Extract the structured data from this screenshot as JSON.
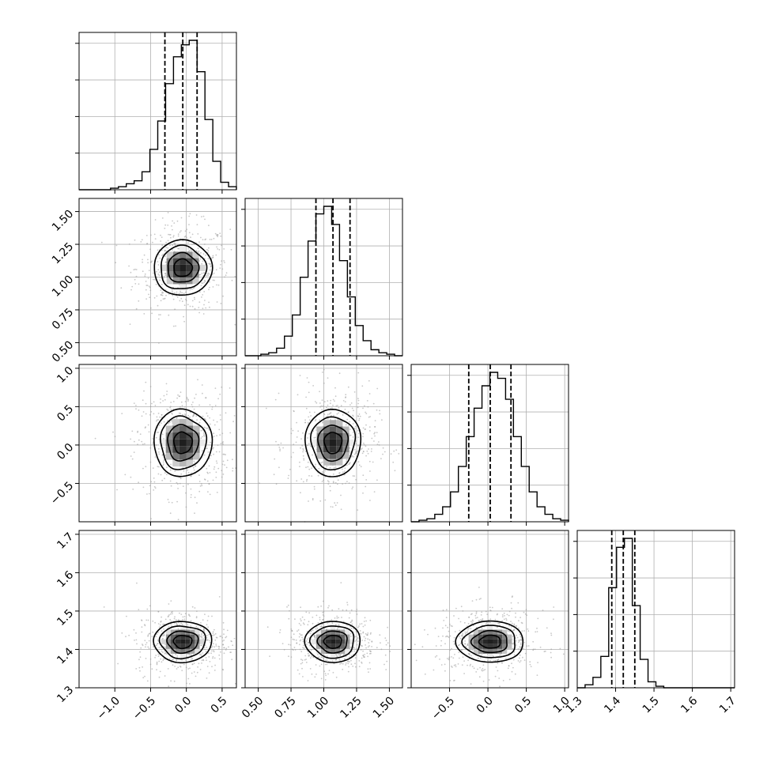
{
  "chart_data": {
    "type": "corner",
    "parameters": 4,
    "grid": true,
    "axes": [
      {
        "range": [
          -1.5,
          0.7
        ],
        "ticks": [
          -1.0,
          -0.5,
          0.0,
          0.5
        ],
        "tick_labels": [
          "−1.0",
          "−0.5",
          "0.0",
          "0.5"
        ],
        "center": -0.05,
        "sigma": 0.25,
        "quantiles": [
          -0.3,
          -0.05,
          0.15
        ],
        "histogram": [
          0,
          0,
          0,
          0,
          0.01,
          0.02,
          0.04,
          0.06,
          0.12,
          0.27,
          0.46,
          0.71,
          0.89,
          0.97,
          1.0,
          0.79,
          0.47,
          0.19,
          0.05,
          0.02
        ]
      },
      {
        "range": [
          0.4,
          1.6
        ],
        "ticks": [
          0.5,
          0.75,
          1.0,
          1.25,
          1.5
        ],
        "tick_labels": [
          "0.50",
          "0.75",
          "1.00",
          "1.25",
          "1.50"
        ],
        "center": 1.07,
        "sigma": 0.13,
        "quantiles": [
          0.94,
          1.07,
          1.2
        ],
        "histogram": [
          0,
          0,
          0.01,
          0.02,
          0.05,
          0.13,
          0.27,
          0.52,
          0.76,
          0.94,
          0.99,
          0.87,
          0.63,
          0.39,
          0.2,
          0.1,
          0.04,
          0.02,
          0.01,
          0
        ]
      },
      {
        "range": [
          -1.0,
          1.05
        ],
        "ticks": [
          -0.5,
          0.0,
          0.5,
          1.0
        ],
        "tick_labels": [
          "−0.5",
          "0.0",
          "0.5",
          "1.0"
        ],
        "center": 0.03,
        "sigma": 0.27,
        "quantiles": [
          -0.25,
          0.03,
          0.3
        ],
        "histogram": [
          0,
          0.01,
          0.02,
          0.05,
          0.1,
          0.2,
          0.37,
          0.57,
          0.76,
          0.91,
          1.0,
          0.96,
          0.82,
          0.57,
          0.37,
          0.2,
          0.1,
          0.05,
          0.02,
          0.01
        ]
      },
      {
        "range": [
          1.3,
          1.71
        ],
        "ticks": [
          1.3,
          1.4,
          1.5,
          1.6,
          1.7
        ],
        "tick_labels": [
          "1.3",
          "1.4",
          "1.5",
          "1.6",
          "1.7"
        ],
        "center": 1.42,
        "sigma": 0.033,
        "quantiles": [
          1.39,
          1.42,
          1.45
        ],
        "histogram": [
          0,
          0.02,
          0.07,
          0.21,
          0.67,
          0.94,
          1.0,
          0.55,
          0.19,
          0.04,
          0.01,
          0,
          0,
          0,
          0,
          0,
          0,
          0,
          0,
          0
        ]
      }
    ],
    "contour_levels": [
      0.9,
      1.5,
      2.2,
      2.8
    ]
  }
}
